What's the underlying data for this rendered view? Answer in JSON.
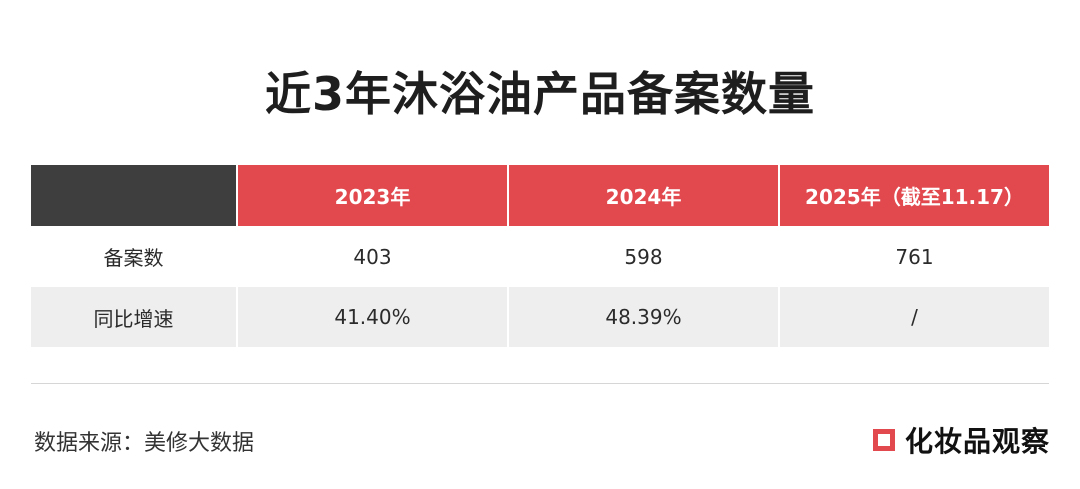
{
  "title": "近3年沐浴油产品备案数量",
  "table": {
    "header": [
      "",
      "2023年",
      "2024年",
      "2025年（截至11.17）"
    ],
    "rows": [
      [
        "备案数",
        "403",
        "598",
        "761"
      ],
      [
        "同比增速",
        "41.40%",
        "48.39%",
        "/"
      ]
    ]
  },
  "source": "数据来源：美修大数据",
  "logo_text": "化妆品观察",
  "colors": {
    "accent_red": "#e1494e",
    "header_dark": "#3e3e3e",
    "row_alt": "#eeeeee"
  }
}
